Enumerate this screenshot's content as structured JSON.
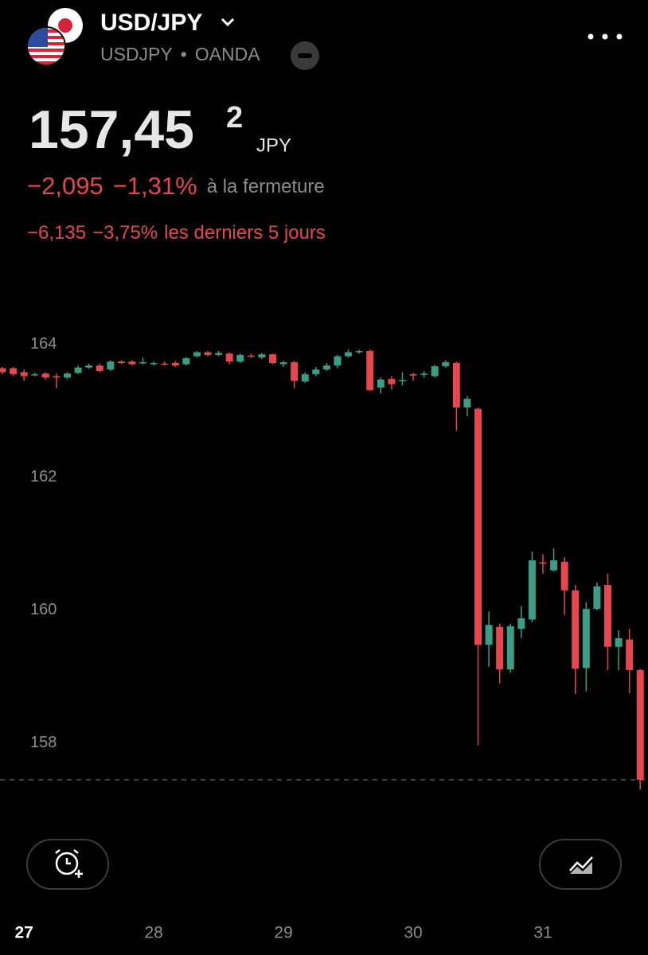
{
  "header": {
    "title": "USD/JPY",
    "symbol": "USDJPY",
    "separator": "•",
    "exchange": "OANDA"
  },
  "quote": {
    "price": "157,45",
    "price_last_digit": "2",
    "currency": "JPY"
  },
  "change": {
    "day": {
      "value": "−2,095",
      "percent": "−1,31%",
      "label": "à la fermeture"
    },
    "five_days": {
      "value": "−6,135",
      "percent": "−3,75%",
      "label": "les derniers 5 jours"
    }
  },
  "chart_data": {
    "type": "candlestick",
    "categories": [
      null,
      null,
      "27",
      null,
      null,
      null,
      null,
      null,
      null,
      null,
      null,
      null,
      null,
      null,
      "28",
      null,
      null,
      null,
      null,
      null,
      null,
      null,
      null,
      null,
      null,
      null,
      "29",
      null,
      null,
      null,
      null,
      null,
      null,
      null,
      null,
      null,
      null,
      null,
      "30",
      null,
      null,
      null,
      null,
      null,
      null,
      null,
      null,
      null,
      null,
      null,
      "31",
      null,
      null,
      null,
      null,
      null,
      null,
      null,
      null,
      null
    ],
    "open": [
      163.64,
      163.64,
      163.58,
      163.55,
      163.56,
      163.52,
      163.5,
      163.57,
      163.65,
      163.68,
      163.62,
      163.74,
      163.74,
      163.72,
      163.7,
      163.71,
      163.72,
      163.7,
      163.82,
      163.88,
      163.84,
      163.86,
      163.74,
      163.83,
      163.8,
      163.85,
      163.7,
      163.73,
      163.44,
      163.55,
      163.62,
      163.68,
      163.82,
      163.88,
      163.9,
      163.35,
      163.48,
      163.45,
      163.55,
      163.55,
      163.52,
      163.67,
      163.72,
      163.05,
      163.03,
      159.48,
      159.75,
      159.11,
      159.72,
      159.86,
      160.72,
      160.6,
      160.73,
      160.3,
      159.13,
      160.02,
      160.38,
      159.45,
      159.56,
      159.1
    ],
    "high": [
      163.66,
      163.66,
      163.62,
      163.57,
      163.58,
      163.56,
      163.58,
      163.68,
      163.71,
      163.71,
      163.76,
      163.76,
      163.76,
      163.8,
      163.74,
      163.74,
      163.75,
      163.81,
      163.9,
      163.9,
      163.9,
      163.88,
      163.86,
      163.86,
      163.87,
      163.86,
      163.75,
      163.75,
      163.58,
      163.66,
      163.72,
      163.84,
      163.92,
      163.92,
      163.92,
      163.5,
      163.52,
      163.58,
      163.57,
      163.6,
      163.69,
      163.76,
      163.74,
      163.22,
      163.05,
      159.98,
      159.8,
      159.8,
      160.06,
      160.88,
      160.84,
      160.93,
      160.8,
      160.38,
      160.12,
      160.42,
      160.55,
      159.7,
      159.72,
      159.12
    ],
    "low": [
      163.55,
      163.52,
      163.45,
      163.52,
      163.47,
      163.34,
      163.48,
      163.55,
      163.63,
      163.58,
      163.6,
      163.7,
      163.68,
      163.7,
      163.68,
      163.68,
      163.66,
      163.68,
      163.8,
      163.82,
      163.82,
      163.7,
      163.72,
      163.8,
      163.78,
      163.7,
      163.66,
      163.34,
      163.42,
      163.52,
      163.6,
      163.64,
      163.8,
      163.86,
      163.3,
      163.26,
      163.32,
      163.38,
      163.45,
      163.5,
      163.5,
      163.65,
      162.7,
      162.92,
      157.97,
      159.15,
      158.9,
      159.06,
      159.58,
      159.82,
      160.55,
      160.58,
      159.93,
      158.74,
      158.78,
      160.0,
      159.1,
      159.1,
      158.75,
      157.3
    ],
    "close": [
      163.58,
      163.55,
      163.52,
      163.55,
      163.5,
      163.5,
      163.56,
      163.65,
      163.68,
      163.6,
      163.74,
      163.72,
      163.7,
      163.73,
      163.72,
      163.7,
      163.68,
      163.79,
      163.88,
      163.84,
      163.87,
      163.74,
      163.84,
      163.82,
      163.85,
      163.72,
      163.73,
      163.45,
      163.55,
      163.62,
      163.68,
      163.82,
      163.88,
      163.9,
      163.31,
      163.47,
      163.4,
      163.46,
      163.53,
      163.56,
      163.67,
      163.73,
      163.05,
      163.18,
      159.48,
      159.78,
      159.11,
      159.76,
      159.88,
      160.75,
      160.7,
      160.75,
      160.3,
      159.12,
      160.02,
      160.36,
      159.45,
      159.58,
      159.1,
      157.45
    ],
    "up_color": "#3d9c84",
    "down_color": "#e5474f",
    "price_line": 157.45,
    "ylim": [
      156.73,
      164.51
    ],
    "yticks": [
      158,
      160,
      162,
      164
    ],
    "grid": false
  }
}
